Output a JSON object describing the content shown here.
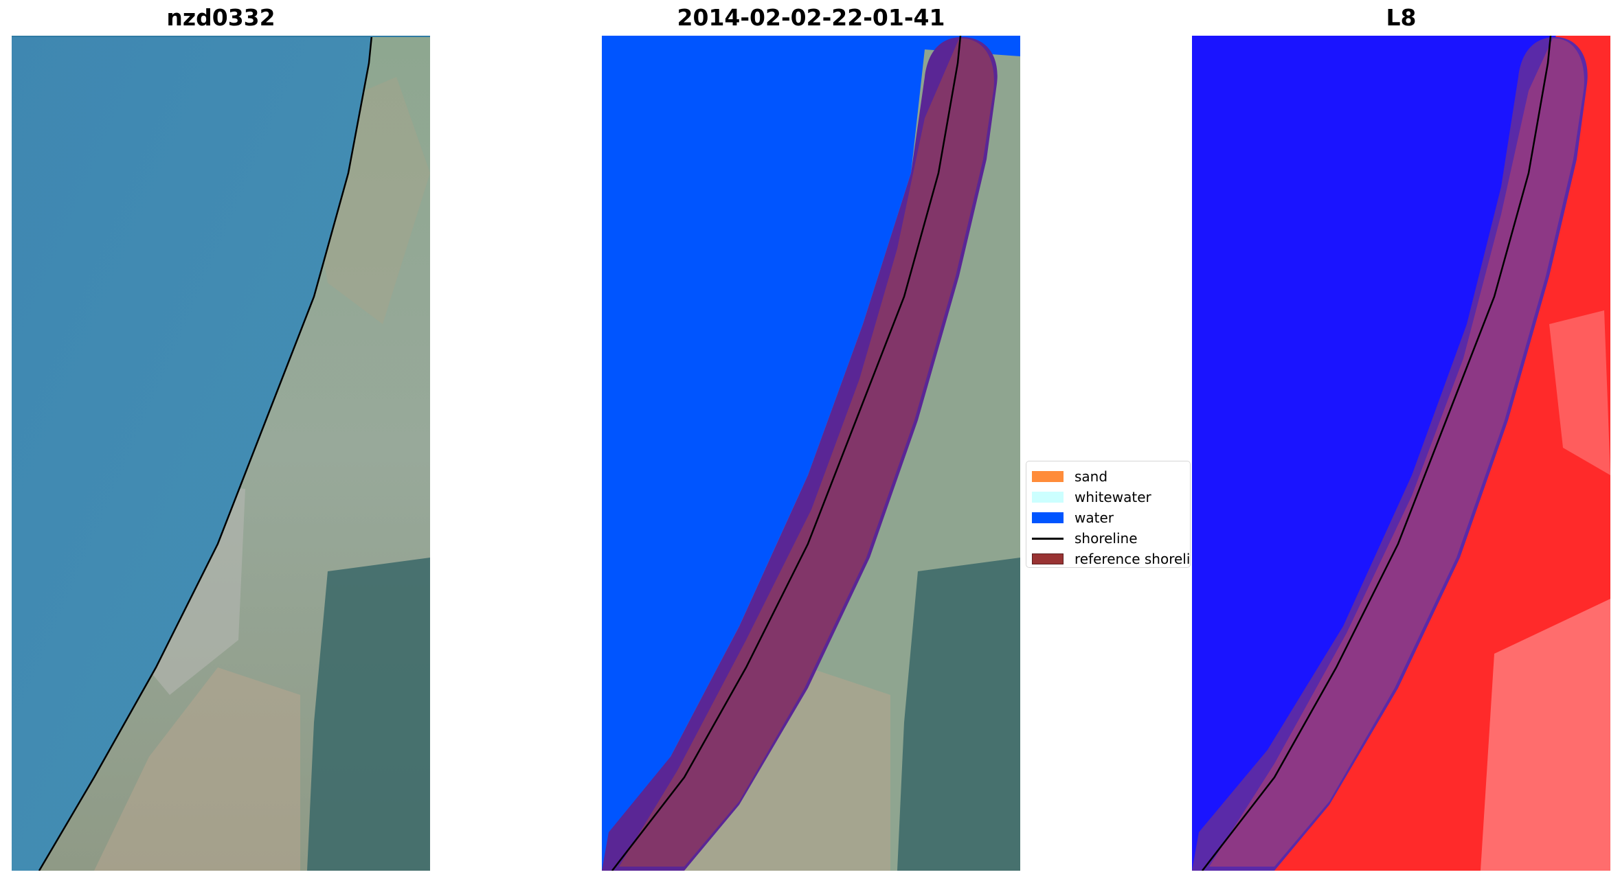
{
  "panels": [
    {
      "title": "nzd0332"
    },
    {
      "title": "2014-02-02-22-01-41"
    },
    {
      "title": "L8"
    }
  ],
  "legend": {
    "items": [
      {
        "label": "sand",
        "kind": "patch",
        "color": "#ff8c3a"
      },
      {
        "label": "whitewater",
        "kind": "patch",
        "color": "#ccffff"
      },
      {
        "label": "water",
        "kind": "patch",
        "color": "#0055ff"
      },
      {
        "label": "shoreline",
        "kind": "line",
        "color": "#000000"
      },
      {
        "label": "reference shoreline",
        "kind": "patch",
        "color": "#993333"
      }
    ]
  },
  "colors": {
    "sea_rgb": "#3d86b0",
    "water_class": "#0055ff",
    "buffer": "#5b2694",
    "reference_band": "#8c3a5e",
    "l8_water": "#1a14ff",
    "l8_land": "#ff2a2a",
    "shoreline": "#000000"
  }
}
